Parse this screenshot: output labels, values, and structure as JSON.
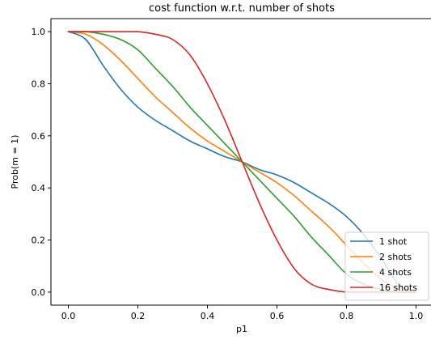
{
  "chart_data": {
    "type": "line",
    "title": "cost function w.r.t. number of shots",
    "xlabel": "p1",
    "ylabel": "Prob(m = 1)",
    "xlim": [
      -0.05,
      1.05
    ],
    "ylim": [
      -0.05,
      1.05
    ],
    "xticks": [
      0.0,
      0.2,
      0.4,
      0.6,
      0.8,
      1.0
    ],
    "xtick_labels": [
      "0.0",
      "0.2",
      "0.4",
      "0.6",
      "0.8",
      "1.0"
    ],
    "yticks": [
      0.0,
      0.2,
      0.4,
      0.6,
      0.8,
      1.0
    ],
    "ytick_labels": [
      "0.0",
      "0.2",
      "0.4",
      "0.6",
      "0.8",
      "1.0"
    ],
    "grid": false,
    "legend_position": "lower right",
    "x": [
      0.0,
      0.05,
      0.1,
      0.15,
      0.2,
      0.25,
      0.3,
      0.35,
      0.4,
      0.45,
      0.5,
      0.55,
      0.6,
      0.65,
      0.7,
      0.75,
      0.8,
      0.85,
      0.9,
      0.95,
      1.0
    ],
    "series": [
      {
        "name": "1 shot",
        "color": "#1f77b4",
        "values": [
          1.0,
          0.97,
          0.87,
          0.78,
          0.71,
          0.66,
          0.62,
          0.58,
          0.55,
          0.52,
          0.5,
          0.47,
          0.45,
          0.42,
          0.38,
          0.34,
          0.29,
          0.22,
          0.13,
          0.03,
          0.0
        ]
      },
      {
        "name": "2 shots",
        "color": "#ff7f0e",
        "values": [
          1.0,
          0.99,
          0.95,
          0.89,
          0.82,
          0.75,
          0.69,
          0.63,
          0.58,
          0.54,
          0.5,
          0.46,
          0.42,
          0.37,
          0.31,
          0.25,
          0.18,
          0.11,
          0.05,
          0.01,
          0.0
        ]
      },
      {
        "name": "4 shots",
        "color": "#2ca02c",
        "values": [
          1.0,
          1.0,
          0.99,
          0.97,
          0.93,
          0.86,
          0.79,
          0.71,
          0.64,
          0.57,
          0.5,
          0.43,
          0.36,
          0.29,
          0.21,
          0.14,
          0.07,
          0.03,
          0.01,
          0.0,
          0.0
        ]
      },
      {
        "name": "16 shots",
        "color": "#d62728",
        "values": [
          1.0,
          1.0,
          1.0,
          1.0,
          1.0,
          0.99,
          0.97,
          0.91,
          0.8,
          0.66,
          0.5,
          0.34,
          0.2,
          0.09,
          0.03,
          0.01,
          0.0,
          0.0,
          0.0,
          0.0,
          0.0
        ]
      }
    ]
  }
}
